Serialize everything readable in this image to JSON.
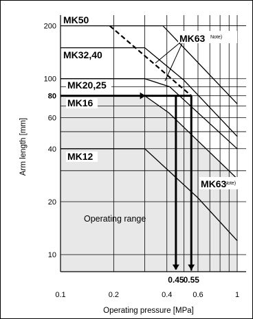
{
  "chart_data": {
    "type": "line",
    "xlabel": "Operating pressure [MPa]",
    "ylabel": "Arm length [mm]",
    "xscale": "log",
    "yscale": "log",
    "xlim": [
      0.1,
      1.0
    ],
    "ylim": [
      8,
      230
    ],
    "x_ticks": [
      {
        "value": 0.1,
        "label": "0.1"
      },
      {
        "value": 0.2,
        "label": "0.2"
      },
      {
        "value": 0.4,
        "label": "0.4"
      },
      {
        "value": 0.6,
        "label": "0.6"
      },
      {
        "value": 1.0,
        "label": "1"
      }
    ],
    "x_minor_ticks": [
      0.3,
      0.5,
      0.7,
      0.8,
      0.9
    ],
    "y_ticks": [
      {
        "value": 10,
        "label": "10"
      },
      {
        "value": 20,
        "label": "20"
      },
      {
        "value": 40,
        "label": "40"
      },
      {
        "value": 60,
        "label": "60"
      },
      {
        "value": 80,
        "label": "80",
        "bold": true
      },
      {
        "value": 100,
        "label": "100"
      },
      {
        "value": 200,
        "label": "200"
      }
    ],
    "y_minor_ticks": [
      30,
      50,
      70,
      90
    ],
    "region_label": "Operating range",
    "series": [
      {
        "name": "MK50",
        "label_text": "MK50",
        "style": "solid",
        "x": [
          0.1,
          0.38,
          1.0
        ],
        "y": [
          200,
          200,
          72
        ]
      },
      {
        "name": "MK32,40",
        "label_text": "MK32,40",
        "style": "solid",
        "x": [
          0.1,
          0.3,
          0.5,
          1.0
        ],
        "y": [
          150,
          150,
          98,
          47
        ]
      },
      {
        "name": "MK20,25",
        "label_text": "MK20,25",
        "style": "solid",
        "x": [
          0.1,
          0.3,
          0.415,
          1.0
        ],
        "y": [
          100,
          100,
          90,
          40
        ]
      },
      {
        "name": "MK16",
        "label_text": "MK16",
        "style": "solid",
        "x": [
          0.1,
          0.3,
          0.41,
          1.0
        ],
        "y": [
          80,
          80,
          64,
          27
        ]
      },
      {
        "name": "MK12",
        "label_text": "MK12",
        "style": "solid",
        "x": [
          0.1,
          0.3,
          0.6,
          1.0
        ],
        "y": [
          40,
          40,
          21,
          12
        ]
      },
      {
        "name": "MK63",
        "label_text": "MK63",
        "note": "Note)",
        "style": "dashed",
        "x": [
          0.19,
          0.55,
          0.55
        ],
        "y": [
          200,
          80,
          8.1
        ]
      }
    ],
    "annotations": [
      {
        "type": "arrow-horizontal",
        "from_x": 0.1,
        "to_x": 0.3,
        "y": 80,
        "text": "80"
      },
      {
        "type": "arrow-down",
        "x": 0.45,
        "from_y": 80,
        "to_y": 8.1,
        "text": "0.45"
      },
      {
        "type": "arrow-down",
        "x": 0.55,
        "from_y": 80,
        "to_y": 8.1,
        "text": "0.55"
      }
    ],
    "mk63_label_upper": {
      "text": "MK63",
      "note": "Note)"
    },
    "mk63_label_lower": {
      "text": "MK63",
      "note": "Note)"
    }
  }
}
